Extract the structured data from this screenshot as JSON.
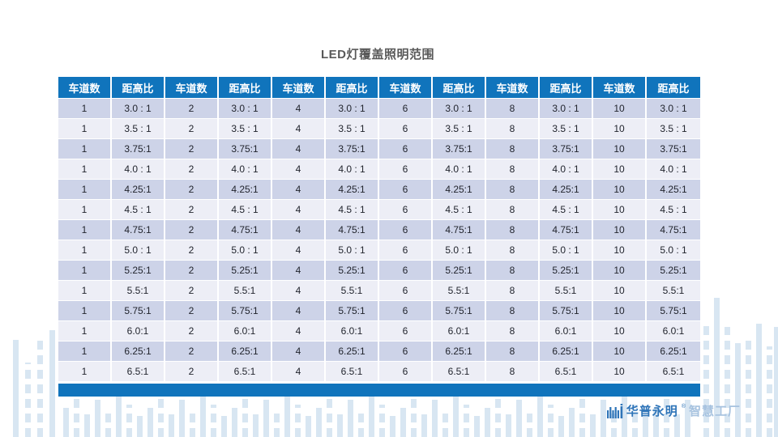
{
  "title": "LED灯覆盖照明范围",
  "table": {
    "column_headers": [
      "车道数",
      "距高比",
      "车道数",
      "距高比",
      "车道数",
      "距高比",
      "车道数",
      "距高比",
      "车道数",
      "距高比",
      "车道数",
      "距高比"
    ],
    "lane_counts": [
      "1",
      "2",
      "4",
      "6",
      "8",
      "10"
    ],
    "ratios": [
      "3.0 : 1",
      "3.5 : 1",
      "3.75:1",
      "4.0 : 1",
      "4.25:1",
      "4.5 : 1",
      "4.75:1",
      "5.0 : 1",
      "5.25:1",
      "5.5:1",
      "5.75:1",
      "6.0:1",
      "6.25:1",
      "6.5:1"
    ],
    "rows": [
      [
        "1",
        "3.0 : 1",
        "2",
        "3.0 : 1",
        "4",
        "3.0 : 1",
        "6",
        "3.0 : 1",
        "8",
        "3.0 : 1",
        "10",
        "3.0 : 1"
      ],
      [
        "1",
        "3.5 : 1",
        "2",
        "3.5 : 1",
        "4",
        "3.5 : 1",
        "6",
        "3.5 : 1",
        "8",
        "3.5 : 1",
        "10",
        "3.5 : 1"
      ],
      [
        "1",
        "3.75:1",
        "2",
        "3.75:1",
        "4",
        "3.75:1",
        "6",
        "3.75:1",
        "8",
        "3.75:1",
        "10",
        "3.75:1"
      ],
      [
        "1",
        "4.0 : 1",
        "2",
        "4.0 : 1",
        "4",
        "4.0 : 1",
        "6",
        "4.0 : 1",
        "8",
        "4.0 : 1",
        "10",
        "4.0 : 1"
      ],
      [
        "1",
        "4.25:1",
        "2",
        "4.25:1",
        "4",
        "4.25:1",
        "6",
        "4.25:1",
        "8",
        "4.25:1",
        "10",
        "4.25:1"
      ],
      [
        "1",
        "4.5 : 1",
        "2",
        "4.5 : 1",
        "4",
        "4.5 : 1",
        "6",
        "4.5 : 1",
        "8",
        "4.5 : 1",
        "10",
        "4.5 : 1"
      ],
      [
        "1",
        "4.75:1",
        "2",
        "4.75:1",
        "4",
        "4.75:1",
        "6",
        "4.75:1",
        "8",
        "4.75:1",
        "10",
        "4.75:1"
      ],
      [
        "1",
        "5.0 : 1",
        "2",
        "5.0 : 1",
        "4",
        "5.0 : 1",
        "6",
        "5.0 : 1",
        "8",
        "5.0 : 1",
        "10",
        "5.0 : 1"
      ],
      [
        "1",
        "5.25:1",
        "2",
        "5.25:1",
        "4",
        "5.25:1",
        "6",
        "5.25:1",
        "8",
        "5.25:1",
        "10",
        "5.25:1"
      ],
      [
        "1",
        "5.5:1",
        "2",
        "5.5:1",
        "4",
        "5.5:1",
        "6",
        "5.5:1",
        "8",
        "5.5:1",
        "10",
        "5.5:1"
      ],
      [
        "1",
        "5.75:1",
        "2",
        "5.75:1",
        "4",
        "5.75:1",
        "6",
        "5.75:1",
        "8",
        "5.75:1",
        "10",
        "5.75:1"
      ],
      [
        "1",
        "6.0:1",
        "2",
        "6.0:1",
        "4",
        "6.0:1",
        "6",
        "6.0:1",
        "8",
        "6.0:1",
        "10",
        "6.0:1"
      ],
      [
        "1",
        "6.25:1",
        "2",
        "6.25:1",
        "4",
        "6.25:1",
        "6",
        "6.25:1",
        "8",
        "6.25:1",
        "10",
        "6.25:1"
      ],
      [
        "1",
        "6.5:1",
        "2",
        "6.5:1",
        "4",
        "6.5:1",
        "6",
        "6.5:1",
        "8",
        "6.5:1",
        "10",
        "6.5:1"
      ]
    ]
  },
  "footer_logo": {
    "brand": "华普永明",
    "reg_mark": "®",
    "suffix": "智慧工厂"
  },
  "colors": {
    "header_blue": "#1074BC",
    "row_alt_dark": "#CDD3E8",
    "row_alt_light": "#EDEEF6",
    "title_gray": "#595959",
    "brand_blue": "#2E74B8",
    "brand_light_blue": "#A6C2DF",
    "deco_bar_blue": "#D8E6F2"
  }
}
